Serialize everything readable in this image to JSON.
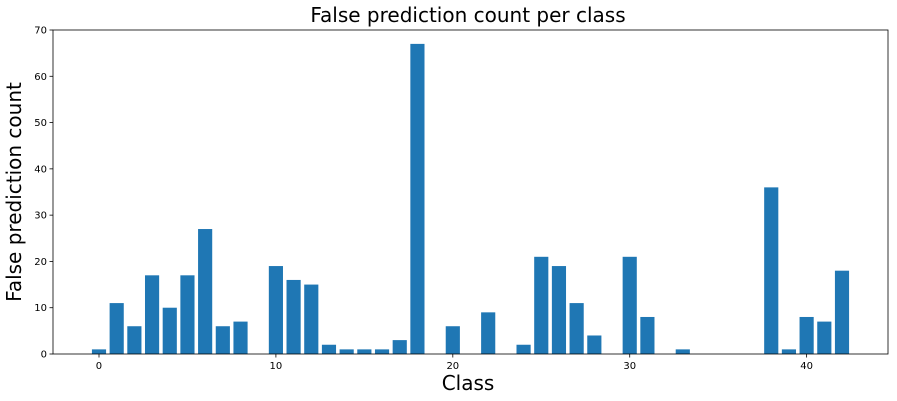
{
  "chart_data": {
    "type": "bar",
    "title": "False prediction count per class",
    "xlabel": "Class",
    "ylabel": "False prediction count",
    "x": [
      0,
      1,
      2,
      3,
      4,
      5,
      6,
      7,
      8,
      9,
      10,
      11,
      12,
      13,
      14,
      15,
      16,
      17,
      18,
      19,
      20,
      21,
      22,
      23,
      24,
      25,
      26,
      27,
      28,
      29,
      30,
      31,
      32,
      33,
      34,
      35,
      36,
      37,
      38,
      39,
      40,
      41,
      42
    ],
    "values": [
      1,
      11,
      6,
      17,
      10,
      17,
      27,
      6,
      7,
      0,
      19,
      16,
      15,
      2,
      1,
      1,
      1,
      3,
      67,
      0,
      6,
      0,
      9,
      0,
      2,
      21,
      19,
      11,
      4,
      0,
      21,
      8,
      0,
      1,
      0,
      0,
      0,
      0,
      36,
      1,
      8,
      7,
      18
    ],
    "xlim": [
      -2.6,
      44.6
    ],
    "ylim": [
      0,
      70
    ],
    "xticks": [
      0,
      10,
      20,
      30,
      40
    ],
    "yticks": [
      0,
      10,
      20,
      30,
      40,
      50,
      60,
      70
    ],
    "bar_color": "#1f77b4",
    "grid": false,
    "legend": "none"
  }
}
